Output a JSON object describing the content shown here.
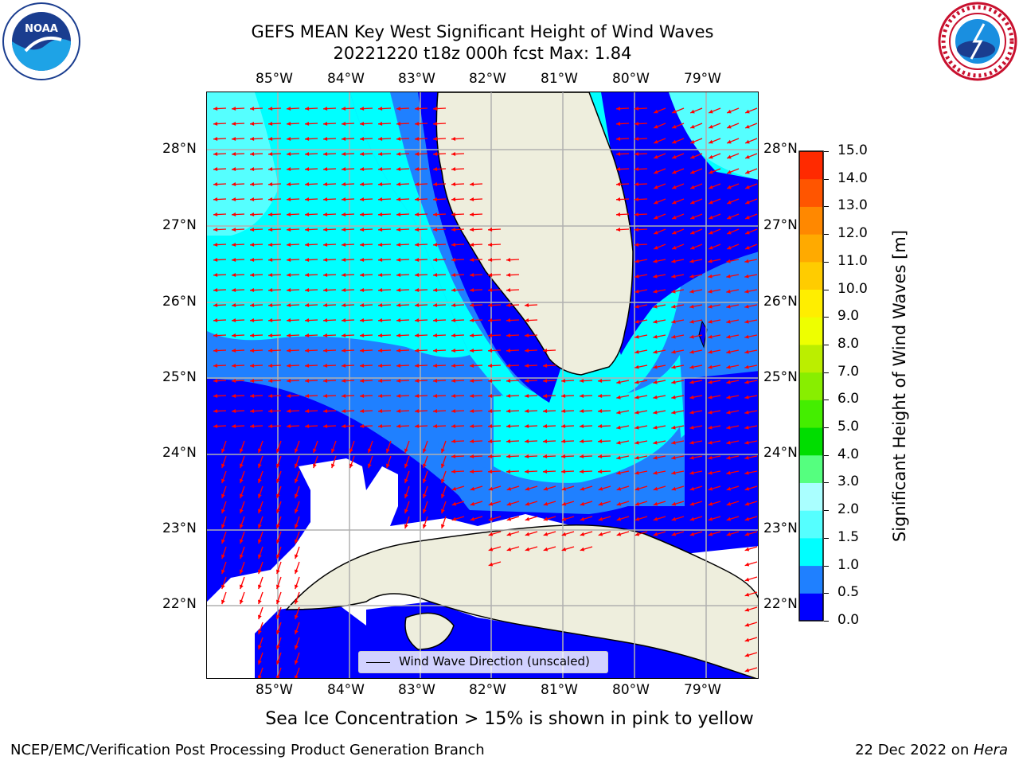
{
  "title": {
    "line1": "GEFS MEAN Key West Significant Height of Wind Waves",
    "line2": "20221220 t18z 000h fcst   Max: 1.84"
  },
  "logos": {
    "left": "noara-logo",
    "right": "nws-logo"
  },
  "map": {
    "lon_ticks": [
      "85°W",
      "84°W",
      "83°W",
      "82°W",
      "81°W",
      "80°W",
      "79°W"
    ],
    "lat_ticks": [
      "28°N",
      "27°N",
      "26°N",
      "25°N",
      "24°N",
      "23°N",
      "22°N"
    ],
    "legend_label": "Wind Wave Direction (unscaled)",
    "arrow_color": "#ff0000",
    "land_color": "#eeeedd"
  },
  "colorbar": {
    "label": "Significant Height of Wind Waves [m]",
    "ticks": [
      "15.0",
      "14.0",
      "13.0",
      "12.0",
      "11.0",
      "10.0",
      "9.0",
      "8.0",
      "7.0",
      "6.0",
      "5.0",
      "4.0",
      "3.0",
      "2.0",
      "1.5",
      "1.0",
      "0.5",
      "0.0"
    ],
    "colors": [
      "#0000ff",
      "#1f80ff",
      "#00ffff",
      "#55ffff",
      "#aaffff",
      "#55ff7f",
      "#00dd00",
      "#44ee00",
      "#88ee00",
      "#bbee00",
      "#eeff00",
      "#ffee00",
      "#ffcc00",
      "#ffaa00",
      "#ff8800",
      "#ff5500",
      "#ff2a00"
    ]
  },
  "footer": {
    "ice_note": "Sea Ice Concentration > 15% is shown in pink to yellow",
    "left": "NCEP/EMC/Verification Post Processing Product Generation Branch",
    "right_date": "22 Dec 2022 on ",
    "right_host": "Hera"
  }
}
